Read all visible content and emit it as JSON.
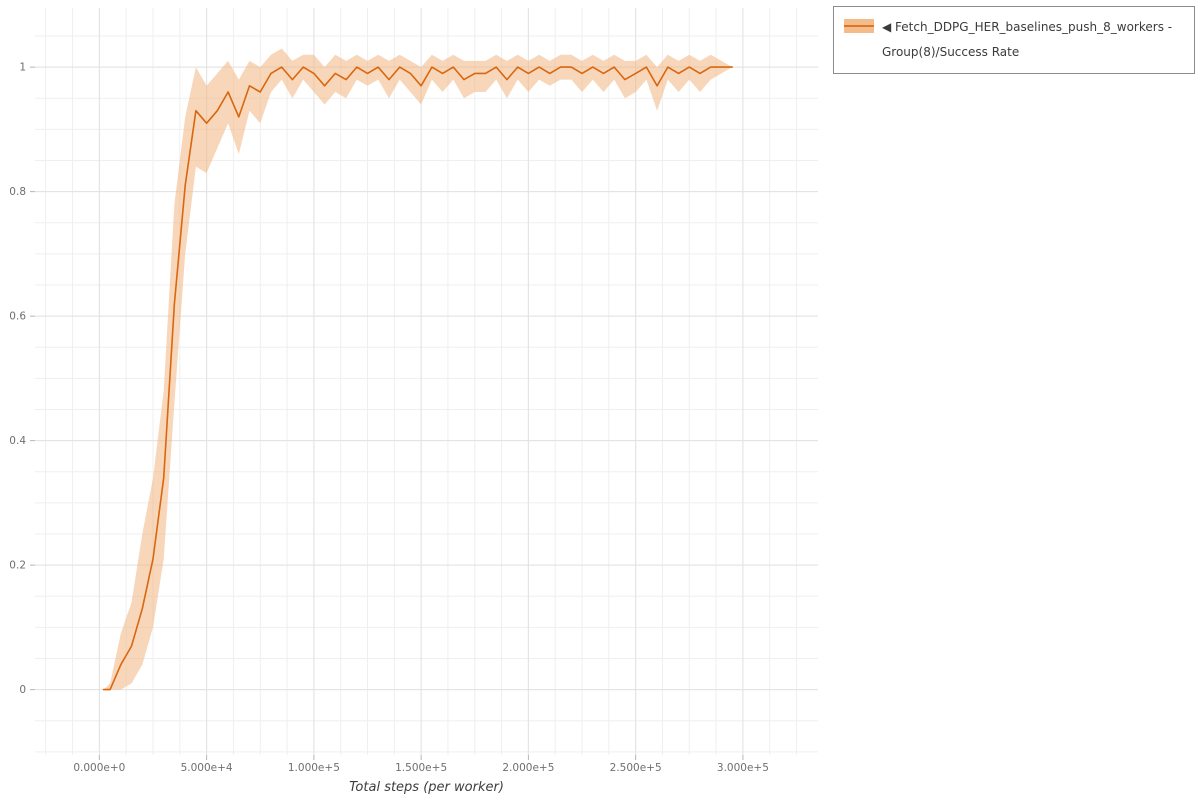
{
  "legend": {
    "label": "◀ Fetch_DDPG_HER_baselines_push_8_workers - Group(8)/Success Rate"
  },
  "colors": {
    "line": "#d9670f",
    "band": "#f3b57f",
    "band_opacity": "0.55",
    "grid_minor": "#efefef",
    "grid_major": "#e2e2e2",
    "tick_mark": "#b5b5b5",
    "tick_text": "#6f6f6f"
  },
  "chart_data": {
    "type": "line",
    "title": "",
    "xlabel": "Total steps (per worker)",
    "ylabel": "",
    "xlim": [
      -30000,
      335000
    ],
    "ylim": [
      -0.105,
      1.095
    ],
    "grid": true,
    "legend_position": "top-right-outside",
    "x_ticks": {
      "values": [
        0,
        50000,
        100000,
        150000,
        200000,
        250000,
        300000
      ],
      "labels": [
        "0.000e+0",
        "5.000e+4",
        "1.000e+5",
        "1.500e+5",
        "2.000e+5",
        "2.500e+5",
        "3.000e+5"
      ],
      "minor_step": 12500
    },
    "y_ticks": {
      "values": [
        0,
        0.2,
        0.4,
        0.6,
        0.8,
        1
      ],
      "labels": [
        "0",
        "0.2",
        "0.4",
        "0.6",
        "0.8",
        "1"
      ],
      "minor_step": 0.05
    },
    "series": [
      {
        "name": "Fetch_DDPG_HER_baselines_push_8_workers - Group(8)/Success Rate",
        "x": [
          2000,
          5000,
          10000,
          15000,
          20000,
          25000,
          30000,
          35000,
          40000,
          45000,
          50000,
          55000,
          60000,
          65000,
          70000,
          75000,
          80000,
          85000,
          90000,
          95000,
          100000,
          105000,
          110000,
          115000,
          120000,
          125000,
          130000,
          135000,
          140000,
          145000,
          150000,
          155000,
          160000,
          165000,
          170000,
          175000,
          180000,
          185000,
          190000,
          195000,
          200000,
          205000,
          210000,
          215000,
          220000,
          225000,
          230000,
          235000,
          240000,
          245000,
          250000,
          255000,
          260000,
          265000,
          270000,
          275000,
          280000,
          285000,
          290000,
          295000
        ],
        "mean": [
          0.0,
          0.0,
          0.04,
          0.07,
          0.13,
          0.21,
          0.34,
          0.62,
          0.81,
          0.93,
          0.91,
          0.93,
          0.96,
          0.92,
          0.97,
          0.96,
          0.99,
          1.0,
          0.98,
          1.0,
          0.99,
          0.97,
          0.99,
          0.98,
          1.0,
          0.99,
          1.0,
          0.98,
          1.0,
          0.99,
          0.97,
          1.0,
          0.99,
          1.0,
          0.98,
          0.99,
          0.99,
          1.0,
          0.98,
          1.0,
          0.99,
          1.0,
          0.99,
          1.0,
          1.0,
          0.99,
          1.0,
          0.99,
          1.0,
          0.98,
          0.99,
          1.0,
          0.97,
          1.0,
          0.99,
          1.0,
          0.99,
          1.0,
          1.0,
          1.0
        ],
        "lower": [
          0.0,
          0.0,
          0.0,
          0.01,
          0.04,
          0.1,
          0.21,
          0.46,
          0.7,
          0.84,
          0.83,
          0.87,
          0.91,
          0.86,
          0.93,
          0.91,
          0.96,
          0.98,
          0.95,
          0.98,
          0.96,
          0.94,
          0.96,
          0.95,
          0.98,
          0.97,
          0.98,
          0.95,
          0.98,
          0.96,
          0.94,
          0.98,
          0.96,
          0.98,
          0.95,
          0.96,
          0.96,
          0.98,
          0.95,
          0.98,
          0.96,
          0.98,
          0.97,
          0.98,
          0.98,
          0.96,
          0.98,
          0.96,
          0.98,
          0.95,
          0.96,
          0.98,
          0.93,
          0.98,
          0.96,
          0.98,
          0.96,
          0.98,
          0.99,
          1.0
        ],
        "upper": [
          0.0,
          0.01,
          0.09,
          0.14,
          0.25,
          0.34,
          0.48,
          0.78,
          0.92,
          1.0,
          0.97,
          0.99,
          1.01,
          0.98,
          1.01,
          1.0,
          1.02,
          1.03,
          1.01,
          1.02,
          1.02,
          1.0,
          1.02,
          1.01,
          1.02,
          1.01,
          1.02,
          1.01,
          1.02,
          1.01,
          1.0,
          1.02,
          1.01,
          1.02,
          1.01,
          1.01,
          1.01,
          1.02,
          1.01,
          1.02,
          1.01,
          1.02,
          1.01,
          1.02,
          1.02,
          1.01,
          1.02,
          1.01,
          1.02,
          1.01,
          1.01,
          1.02,
          1.0,
          1.02,
          1.01,
          1.02,
          1.01,
          1.02,
          1.01,
          1.0
        ]
      }
    ]
  }
}
